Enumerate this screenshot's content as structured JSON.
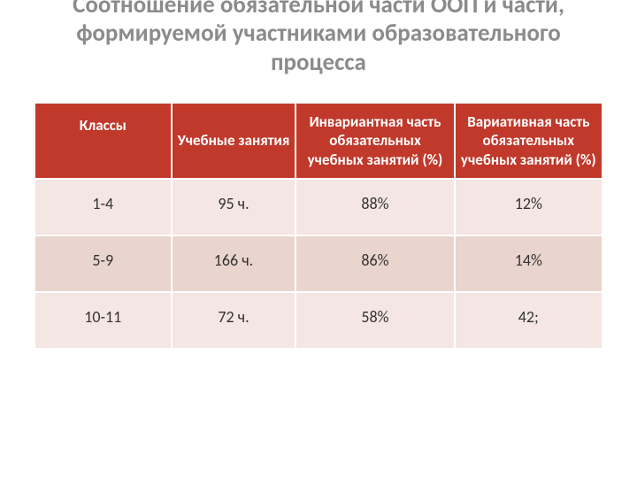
{
  "title": "Соотношение обязательной части ООП и части, формируемой участниками образовательного процесса",
  "table": {
    "type": "table",
    "header_bg": "#c0392b",
    "header_color": "#ffffff",
    "row_bg_light": "#f3e6e3",
    "row_bg_dark": "#e9d4ce",
    "text_color": "#333333",
    "title_color": "#8b8b8b",
    "title_fontsize": 27,
    "header_fontsize": 17,
    "cell_fontsize": 18,
    "columns": [
      {
        "label": "Классы",
        "width": "24%"
      },
      {
        "label": "Учебные занятия",
        "width": "22%"
      },
      {
        "label": "Инвариантная часть обязательных учебных занятий (%)",
        "width": "28%"
      },
      {
        "label": "Вариативная часть обязательных учебных занятий (%)",
        "width": "26%"
      }
    ],
    "rows": [
      [
        "1-4",
        "95 ч.",
        "88%",
        "12%"
      ],
      [
        "5-9",
        "166 ч.",
        "86%",
        "14%"
      ],
      [
        "10-11",
        "72 ч.",
        "58%",
        "42;"
      ]
    ]
  }
}
